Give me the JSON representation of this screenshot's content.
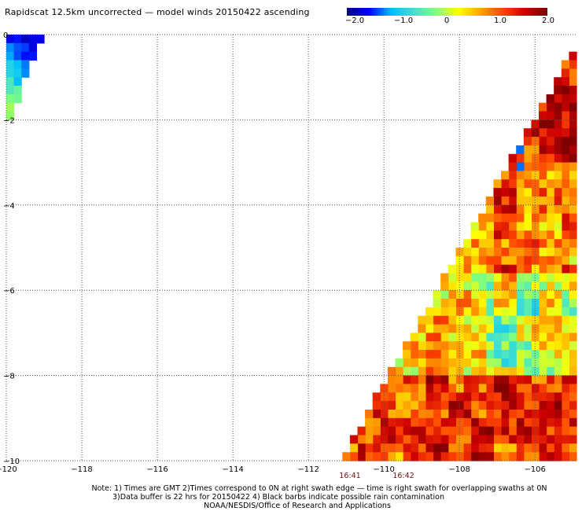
{
  "title": "Rapidscat 12.5km uncorrected — model winds 20150422 ascending",
  "colorbar": {
    "ticks": [
      "−2.0",
      "−1.0",
      "0",
      "1.0",
      "2.0"
    ],
    "colors": [
      "#00008b",
      "#0000ff",
      "#00bfff",
      "#40e0d0",
      "#7fff7f",
      "#ffff00",
      "#ffa500",
      "#ff4500",
      "#cc0000",
      "#800000"
    ]
  },
  "chart_data": {
    "type": "heatmap",
    "title": "Rapidscat 12.5km uncorrected — model winds 20150422 ascending",
    "value_range": [
      -2.0,
      2.0
    ],
    "x_ticks": [
      "−120",
      "−118",
      "−116",
      "−114",
      "−112",
      "−110",
      "−108",
      "−106"
    ],
    "x_tick_values": [
      -120,
      -118,
      -116,
      -114,
      -112,
      -110,
      -108,
      -106
    ],
    "y_ticks": [
      "0",
      "−2",
      "−4",
      "−6",
      "−8",
      "−10"
    ],
    "y_tick_values": [
      0,
      -2,
      -4,
      -6,
      -8,
      -10
    ],
    "xlim": [
      -120,
      -104.9
    ],
    "ylim": [
      -10,
      0
    ],
    "grid": true,
    "time_labels": [
      {
        "text": "16:41",
        "lon": -110.9
      },
      {
        "text": "16:42",
        "lon": -109.5
      }
    ]
  },
  "notes": {
    "line1": "Note: 1) Times are GMT 2)Times correspond to 0N at right swath edge — time is right swath for overlapping swaths at 0N",
    "line2": "3)Data buffer is 22 hrs for 20150422 4) Black barbs indicate possible rain contamination",
    "line3": "NOAA/NESDIS/Office of Research and Applications"
  }
}
